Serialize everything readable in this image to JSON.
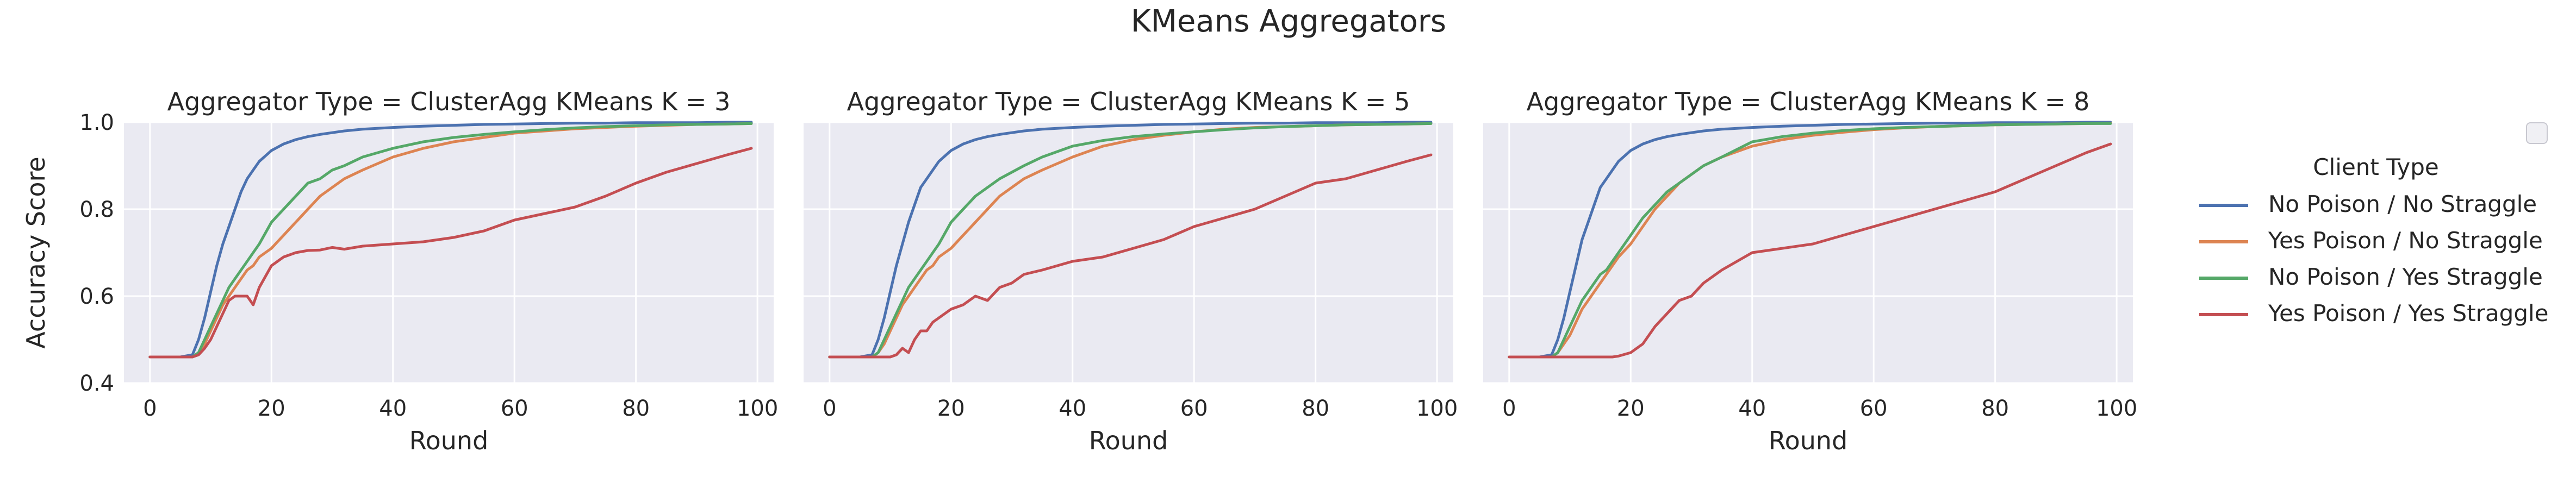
{
  "chart_data": {
    "type": "line",
    "title": "KMeans Aggregators",
    "legend_title": "Client Type",
    "legend_placement": "right",
    "grid": true,
    "xlabel": "Round",
    "ylabel": "Accuracy Score",
    "xlim": [
      0,
      100
    ],
    "ylim": [
      0.4,
      1.0
    ],
    "xticks": [
      "0",
      "20",
      "40",
      "60",
      "80",
      "100"
    ],
    "yticks": [
      "0.4",
      "0.6",
      "0.8",
      "1.0"
    ],
    "series_colors": {
      "No Poison / No Straggle": "#4c72b0",
      "Yes Poison / No Straggle": "#dd8452",
      "No Poison / Yes Straggle": "#55a868",
      "Yes Poison / Yes Straggle": "#c44e52"
    },
    "panels": [
      {
        "title": "Aggregator Type = ClusterAgg KMeans K = 3",
        "x": [
          0,
          5,
          7,
          8,
          9,
          10,
          11,
          12,
          13,
          14,
          15,
          16,
          17,
          18,
          20,
          22,
          24,
          26,
          28,
          30,
          32,
          35,
          40,
          45,
          50,
          55,
          60,
          65,
          70,
          75,
          80,
          85,
          90,
          95,
          99
        ],
        "series": [
          {
            "name": "No Poison / No Straggle",
            "values": [
              0.46,
              0.46,
              0.465,
              0.5,
              0.55,
              0.61,
              0.67,
              0.72,
              0.76,
              0.8,
              0.84,
              0.87,
              0.89,
              0.91,
              0.935,
              0.95,
              0.96,
              0.967,
              0.972,
              0.976,
              0.98,
              0.984,
              0.988,
              0.991,
              0.993,
              0.995,
              0.996,
              0.997,
              0.998,
              0.998,
              0.999,
              0.999,
              0.999,
              1.0,
              1.0
            ]
          },
          {
            "name": "Yes Poison / No Straggle",
            "values": [
              0.46,
              0.46,
              0.46,
              0.47,
              0.49,
              0.52,
              0.55,
              0.58,
              0.6,
              0.62,
              0.64,
              0.66,
              0.67,
              0.69,
              0.71,
              0.74,
              0.77,
              0.8,
              0.83,
              0.85,
              0.87,
              0.89,
              0.92,
              0.94,
              0.955,
              0.965,
              0.975,
              0.98,
              0.985,
              0.988,
              0.991,
              0.993,
              0.995,
              0.996,
              0.997
            ]
          },
          {
            "name": "No Poison / Yes Straggle",
            "values": [
              0.46,
              0.46,
              0.46,
              0.47,
              0.5,
              0.53,
              0.56,
              0.59,
              0.62,
              0.64,
              0.66,
              0.68,
              0.7,
              0.72,
              0.77,
              0.8,
              0.83,
              0.86,
              0.87,
              0.89,
              0.9,
              0.92,
              0.94,
              0.955,
              0.965,
              0.972,
              0.978,
              0.983,
              0.987,
              0.99,
              0.992,
              0.994,
              0.995,
              0.996,
              0.997
            ]
          },
          {
            "name": "Yes Poison / Yes Straggle",
            "values": [
              0.46,
              0.46,
              0.46,
              0.465,
              0.48,
              0.5,
              0.53,
              0.56,
              0.59,
              0.6,
              0.6,
              0.6,
              0.58,
              0.62,
              0.67,
              0.69,
              0.7,
              0.705,
              0.706,
              0.712,
              0.708,
              0.715,
              0.72,
              0.725,
              0.735,
              0.75,
              0.775,
              0.79,
              0.805,
              0.83,
              0.86,
              0.885,
              0.905,
              0.925,
              0.94
            ]
          }
        ]
      },
      {
        "title": "Aggregator Type = ClusterAgg KMeans K = 5",
        "x": [
          0,
          5,
          7,
          8,
          9,
          10,
          11,
          12,
          13,
          14,
          15,
          16,
          17,
          18,
          20,
          22,
          24,
          26,
          28,
          30,
          32,
          35,
          40,
          45,
          50,
          55,
          60,
          65,
          70,
          75,
          80,
          85,
          90,
          95,
          99
        ],
        "series": [
          {
            "name": "No Poison / No Straggle",
            "values": [
              0.46,
              0.46,
              0.465,
              0.5,
              0.55,
              0.61,
              0.67,
              0.72,
              0.77,
              0.81,
              0.85,
              0.87,
              0.89,
              0.91,
              0.935,
              0.95,
              0.96,
              0.967,
              0.972,
              0.976,
              0.98,
              0.984,
              0.988,
              0.991,
              0.993,
              0.995,
              0.996,
              0.997,
              0.998,
              0.998,
              0.999,
              0.999,
              0.999,
              1.0,
              1.0
            ]
          },
          {
            "name": "Yes Poison / No Straggle",
            "values": [
              0.46,
              0.46,
              0.46,
              0.47,
              0.49,
              0.52,
              0.55,
              0.58,
              0.6,
              0.62,
              0.64,
              0.66,
              0.67,
              0.69,
              0.71,
              0.74,
              0.77,
              0.8,
              0.83,
              0.85,
              0.87,
              0.89,
              0.92,
              0.945,
              0.96,
              0.97,
              0.978,
              0.984,
              0.988,
              0.99,
              0.992,
              0.994,
              0.995,
              0.996,
              0.997
            ]
          },
          {
            "name": "No Poison / Yes Straggle",
            "values": [
              0.46,
              0.46,
              0.46,
              0.47,
              0.5,
              0.53,
              0.56,
              0.59,
              0.62,
              0.64,
              0.66,
              0.68,
              0.7,
              0.72,
              0.77,
              0.8,
              0.83,
              0.85,
              0.87,
              0.885,
              0.9,
              0.92,
              0.945,
              0.958,
              0.967,
              0.973,
              0.978,
              0.983,
              0.987,
              0.99,
              0.992,
              0.994,
              0.995,
              0.996,
              0.997
            ]
          },
          {
            "name": "Yes Poison / Yes Straggle",
            "values": [
              0.46,
              0.46,
              0.46,
              0.46,
              0.46,
              0.46,
              0.465,
              0.48,
              0.47,
              0.5,
              0.52,
              0.52,
              0.54,
              0.55,
              0.57,
              0.58,
              0.6,
              0.59,
              0.62,
              0.63,
              0.65,
              0.66,
              0.68,
              0.69,
              0.71,
              0.73,
              0.76,
              0.78,
              0.8,
              0.83,
              0.86,
              0.87,
              0.89,
              0.91,
              0.925
            ]
          }
        ]
      },
      {
        "title": "Aggregator Type = ClusterAgg KMeans K = 8",
        "x": [
          0,
          5,
          7,
          8,
          9,
          10,
          11,
          12,
          13,
          14,
          15,
          16,
          17,
          18,
          20,
          22,
          24,
          26,
          28,
          30,
          32,
          35,
          40,
          45,
          50,
          55,
          60,
          65,
          70,
          75,
          80,
          85,
          90,
          95,
          99
        ],
        "series": [
          {
            "name": "No Poison / No Straggle",
            "values": [
              0.46,
              0.46,
              0.465,
              0.5,
              0.55,
              0.61,
              0.67,
              0.73,
              0.77,
              0.81,
              0.85,
              0.87,
              0.89,
              0.91,
              0.935,
              0.95,
              0.96,
              0.967,
              0.972,
              0.976,
              0.98,
              0.984,
              0.988,
              0.991,
              0.993,
              0.995,
              0.996,
              0.997,
              0.998,
              0.998,
              0.999,
              0.999,
              0.999,
              1.0,
              1.0
            ]
          },
          {
            "name": "Yes Poison / No Straggle",
            "values": [
              0.46,
              0.46,
              0.46,
              0.47,
              0.49,
              0.51,
              0.54,
              0.57,
              0.59,
              0.61,
              0.63,
              0.65,
              0.67,
              0.69,
              0.72,
              0.76,
              0.8,
              0.83,
              0.86,
              0.88,
              0.9,
              0.92,
              0.945,
              0.96,
              0.97,
              0.977,
              0.983,
              0.987,
              0.99,
              0.992,
              0.994,
              0.995,
              0.996,
              0.997,
              0.998
            ]
          },
          {
            "name": "No Poison / Yes Straggle",
            "values": [
              0.46,
              0.46,
              0.46,
              0.47,
              0.5,
              0.53,
              0.56,
              0.59,
              0.61,
              0.63,
              0.65,
              0.66,
              0.68,
              0.7,
              0.74,
              0.78,
              0.81,
              0.84,
              0.86,
              0.88,
              0.9,
              0.92,
              0.955,
              0.967,
              0.975,
              0.981,
              0.985,
              0.988,
              0.99,
              0.992,
              0.994,
              0.995,
              0.996,
              0.997,
              0.997
            ]
          },
          {
            "name": "Yes Poison / Yes Straggle",
            "values": [
              0.46,
              0.46,
              0.46,
              0.46,
              0.46,
              0.46,
              0.46,
              0.46,
              0.46,
              0.46,
              0.46,
              0.46,
              0.46,
              0.462,
              0.47,
              0.49,
              0.53,
              0.56,
              0.59,
              0.6,
              0.63,
              0.66,
              0.7,
              0.71,
              0.72,
              0.74,
              0.76,
              0.78,
              0.8,
              0.82,
              0.84,
              0.87,
              0.9,
              0.93,
              0.95
            ]
          }
        ]
      }
    ]
  }
}
